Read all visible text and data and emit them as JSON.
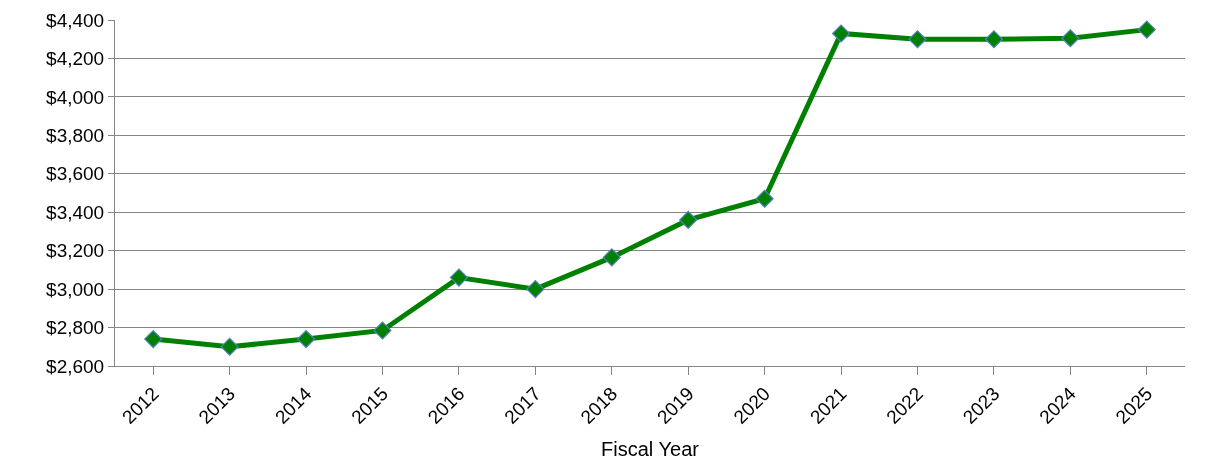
{
  "chart_data": {
    "type": "line",
    "xlabel": "Fiscal Year",
    "categories": [
      "2012",
      "2013",
      "2014",
      "2015",
      "2016",
      "2017",
      "2018",
      "2019",
      "2020",
      "2021",
      "2022",
      "2023",
      "2024",
      "2025"
    ],
    "series": [
      {
        "color": "#008000",
        "values": [
          2740,
          2700,
          2740,
          2785,
          3060,
          3000,
          3165,
          3360,
          3470,
          4330,
          4300,
          4300,
          4305,
          4350
        ]
      }
    ],
    "ylim": [
      2600,
      4400
    ],
    "yticks": [
      {
        "value": 2600,
        "label": "$2,600"
      },
      {
        "value": 2800,
        "label": "$2,800"
      },
      {
        "value": 3000,
        "label": "$3,000"
      },
      {
        "value": 3200,
        "label": "$3,200"
      },
      {
        "value": 3400,
        "label": "$3,400"
      },
      {
        "value": 3600,
        "label": "$3,600"
      },
      {
        "value": 3800,
        "label": "$3,800"
      },
      {
        "value": 4000,
        "label": "$4,000"
      },
      {
        "value": 4200,
        "label": "$4,200"
      },
      {
        "value": 4400,
        "label": "$4,400"
      }
    ],
    "grid": "y",
    "marker": "diamond",
    "line_style": "solid"
  }
}
